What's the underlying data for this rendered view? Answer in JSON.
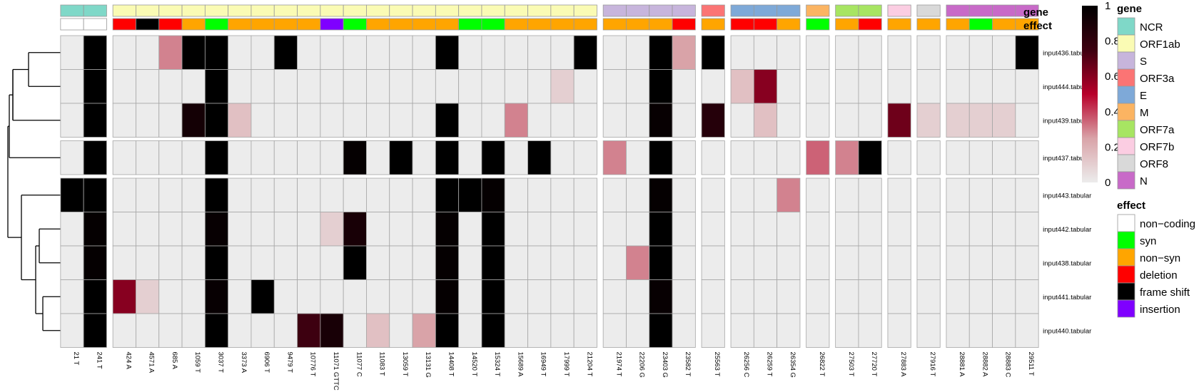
{
  "chart_data": {
    "type": "heatmap",
    "columns": [
      "21 T",
      "241 T",
      "424 A",
      "4571 A",
      "685 A",
      "1059 T",
      "3037 T",
      "3373 A",
      "6906 T",
      "9479 T",
      "10776 T",
      "11071 GTTC",
      "11077 C",
      "11083 T",
      "13059 T",
      "13131 G",
      "14408 T",
      "14520 T",
      "15324 T",
      "15689 A",
      "16949 T",
      "17999 T",
      "21204 T",
      "21974 T",
      "22206 G",
      "23403 G",
      "23582 T",
      "25563 T",
      "26256 C",
      "26259 T",
      "26354 G",
      "26822 T",
      "27503 T",
      "27720 T",
      "27883 A",
      "27916 T",
      "28881 A",
      "28882 A",
      "28883 C",
      "29511 T"
    ],
    "rows": [
      "input436.tabular",
      "input444.tabular",
      "input439.tabular",
      "input437.tabular",
      "input443.tabular",
      "input442.tabular",
      "input438.tabular",
      "input441.tabular",
      "input440.tabular"
    ],
    "gene": [
      "NCR",
      "NCR",
      "ORF1ab",
      "ORF1ab",
      "ORF1ab",
      "ORF1ab",
      "ORF1ab",
      "ORF1ab",
      "ORF1ab",
      "ORF1ab",
      "ORF1ab",
      "ORF1ab",
      "ORF1ab",
      "ORF1ab",
      "ORF1ab",
      "ORF1ab",
      "ORF1ab",
      "ORF1ab",
      "ORF1ab",
      "ORF1ab",
      "ORF1ab",
      "ORF1ab",
      "ORF1ab",
      "S",
      "S",
      "S",
      "S",
      "ORF3a",
      "E",
      "E",
      "E",
      "M",
      "ORF7a",
      "ORF7a",
      "ORF7b",
      "ORF8",
      "N",
      "N",
      "N",
      "N"
    ],
    "effect": [
      "non-coding",
      "non-coding",
      "deletion",
      "frame shift",
      "deletion",
      "non-syn",
      "syn",
      "non-syn",
      "non-syn",
      "non-syn",
      "non-syn",
      "insertion",
      "syn",
      "non-syn",
      "non-syn",
      "non-syn",
      "non-syn",
      "syn",
      "syn",
      "non-syn",
      "non-syn",
      "non-syn",
      "non-syn",
      "non-syn",
      "non-syn",
      "non-syn",
      "deletion",
      "non-syn",
      "deletion",
      "deletion",
      "non-syn",
      "syn",
      "non-syn",
      "deletion",
      "non-syn",
      "non-syn",
      "non-syn",
      "syn",
      "non-syn",
      "non-syn"
    ],
    "values": [
      [
        0,
        1,
        0,
        0,
        0.3,
        1,
        1,
        0,
        0,
        1,
        0,
        0,
        0,
        0,
        0,
        0,
        1,
        0,
        0,
        0,
        0,
        0,
        1,
        0,
        0,
        1,
        0.25,
        1,
        0,
        0,
        0,
        0,
        0,
        0,
        0,
        0,
        0,
        0,
        0,
        1
      ],
      [
        0,
        1,
        0,
        0,
        0,
        0,
        1,
        0,
        0,
        0,
        0,
        0,
        0,
        0,
        0,
        0,
        0,
        0,
        0,
        0,
        0,
        0.1,
        0,
        0,
        0,
        1,
        0,
        0,
        0.15,
        0.6,
        0,
        0,
        0,
        0,
        0,
        0,
        0,
        0,
        0,
        0
      ],
      [
        0,
        1,
        0,
        0,
        0,
        0.92,
        1,
        0.15,
        0,
        0,
        0,
        0,
        0,
        0,
        0,
        0,
        1,
        0,
        0,
        0.3,
        0,
        0,
        0,
        0,
        0,
        0.97,
        0,
        0.85,
        0,
        0.15,
        0,
        0,
        0,
        0,
        0.65,
        0.1,
        0.1,
        0.1,
        0.1,
        0
      ],
      [
        0,
        1,
        0,
        0,
        0,
        0,
        1,
        0,
        0,
        0,
        0,
        0,
        0.98,
        0,
        1,
        0,
        1,
        0,
        1,
        0,
        1,
        0,
        0,
        0.3,
        0,
        1,
        0,
        0,
        0,
        0,
        0,
        0.35,
        0.3,
        1,
        0,
        0,
        0,
        0,
        0,
        0
      ],
      [
        1,
        1,
        0,
        0,
        0,
        0,
        1,
        0,
        0,
        0,
        0,
        0,
        0,
        0,
        0,
        0,
        1,
        1,
        0.98,
        0,
        0,
        0,
        0,
        0,
        0,
        0.98,
        0,
        0,
        0,
        0,
        0.3,
        0,
        0,
        0,
        0,
        0,
        0,
        0,
        0,
        0
      ],
      [
        0,
        0.98,
        0,
        0,
        0,
        0,
        0.97,
        0,
        0,
        0,
        0,
        0.1,
        0.9,
        0,
        0,
        0,
        0.98,
        0,
        1,
        0,
        0,
        0,
        0,
        0,
        0,
        1,
        0,
        0,
        0,
        0,
        0,
        0,
        0,
        0,
        0,
        0,
        0,
        0,
        0,
        0
      ],
      [
        0,
        0.98,
        0,
        0,
        0,
        0,
        1,
        0,
        0,
        0,
        0,
        0,
        1,
        0,
        0,
        0,
        0.98,
        0,
        1,
        0,
        0,
        0,
        0,
        0,
        0.3,
        1,
        0,
        0,
        0,
        0,
        0,
        0,
        0,
        0,
        0,
        0,
        0,
        0,
        0,
        0
      ],
      [
        0,
        1,
        0.6,
        0.1,
        0,
        0,
        0.97,
        0,
        1,
        0,
        0,
        0,
        0,
        0,
        0,
        0,
        0.98,
        0,
        1,
        0,
        0,
        0,
        0,
        0,
        0,
        0.97,
        0,
        0,
        0,
        0,
        0,
        0,
        0,
        0,
        0,
        0,
        0,
        0,
        0,
        0
      ],
      [
        0,
        1,
        0,
        0,
        0,
        0,
        1,
        0,
        0,
        0,
        0.75,
        0.9,
        0,
        0.15,
        0,
        0.25,
        1,
        0,
        1,
        0,
        0,
        0,
        0,
        0,
        0,
        1,
        0,
        0,
        0,
        0,
        0,
        0,
        0,
        0,
        0,
        0,
        0,
        0,
        0,
        0
      ]
    ],
    "track_titles": {
      "gene": "gene",
      "effect": "effect"
    },
    "legends": {
      "gene": {
        "title": "gene",
        "items": [
          {
            "label": "NCR",
            "color": "#7fd8c8"
          },
          {
            "label": "ORF1ab",
            "color": "#fafbb4"
          },
          {
            "label": "S",
            "color": "#c7b5dc"
          },
          {
            "label": "ORF3a",
            "color": "#fb7474"
          },
          {
            "label": "E",
            "color": "#7ea9d8"
          },
          {
            "label": "M",
            "color": "#fbb462"
          },
          {
            "label": "ORF7a",
            "color": "#a7e562"
          },
          {
            "label": "ORF7b",
            "color": "#fbcde2"
          },
          {
            "label": "ORF8",
            "color": "#d9d9d9"
          },
          {
            "label": "N",
            "color": "#c86ac8"
          }
        ]
      },
      "effect": {
        "title": "effect",
        "items": [
          {
            "label": "non−coding",
            "key": "non-coding",
            "color": "#ffffff"
          },
          {
            "label": "syn",
            "key": "syn",
            "color": "#00ff00"
          },
          {
            "label": "non−syn",
            "key": "non-syn",
            "color": "#ffa500"
          },
          {
            "label": "deletion",
            "key": "deletion",
            "color": "#ff0000"
          },
          {
            "label": "frame shift",
            "key": "frame shift",
            "color": "#000000"
          },
          {
            "label": "insertion",
            "key": "insertion",
            "color": "#7f00ff"
          }
        ]
      }
    },
    "color_scale": {
      "range": [
        0,
        1
      ],
      "ticks": [
        "0",
        "0.2",
        "0.4",
        "0.6",
        "0.8",
        "1"
      ],
      "colors": [
        "#ececec",
        "#d9a3a8",
        "#b8002a",
        "#3d0010",
        "#000000"
      ]
    },
    "row_dendrogram": "present"
  }
}
